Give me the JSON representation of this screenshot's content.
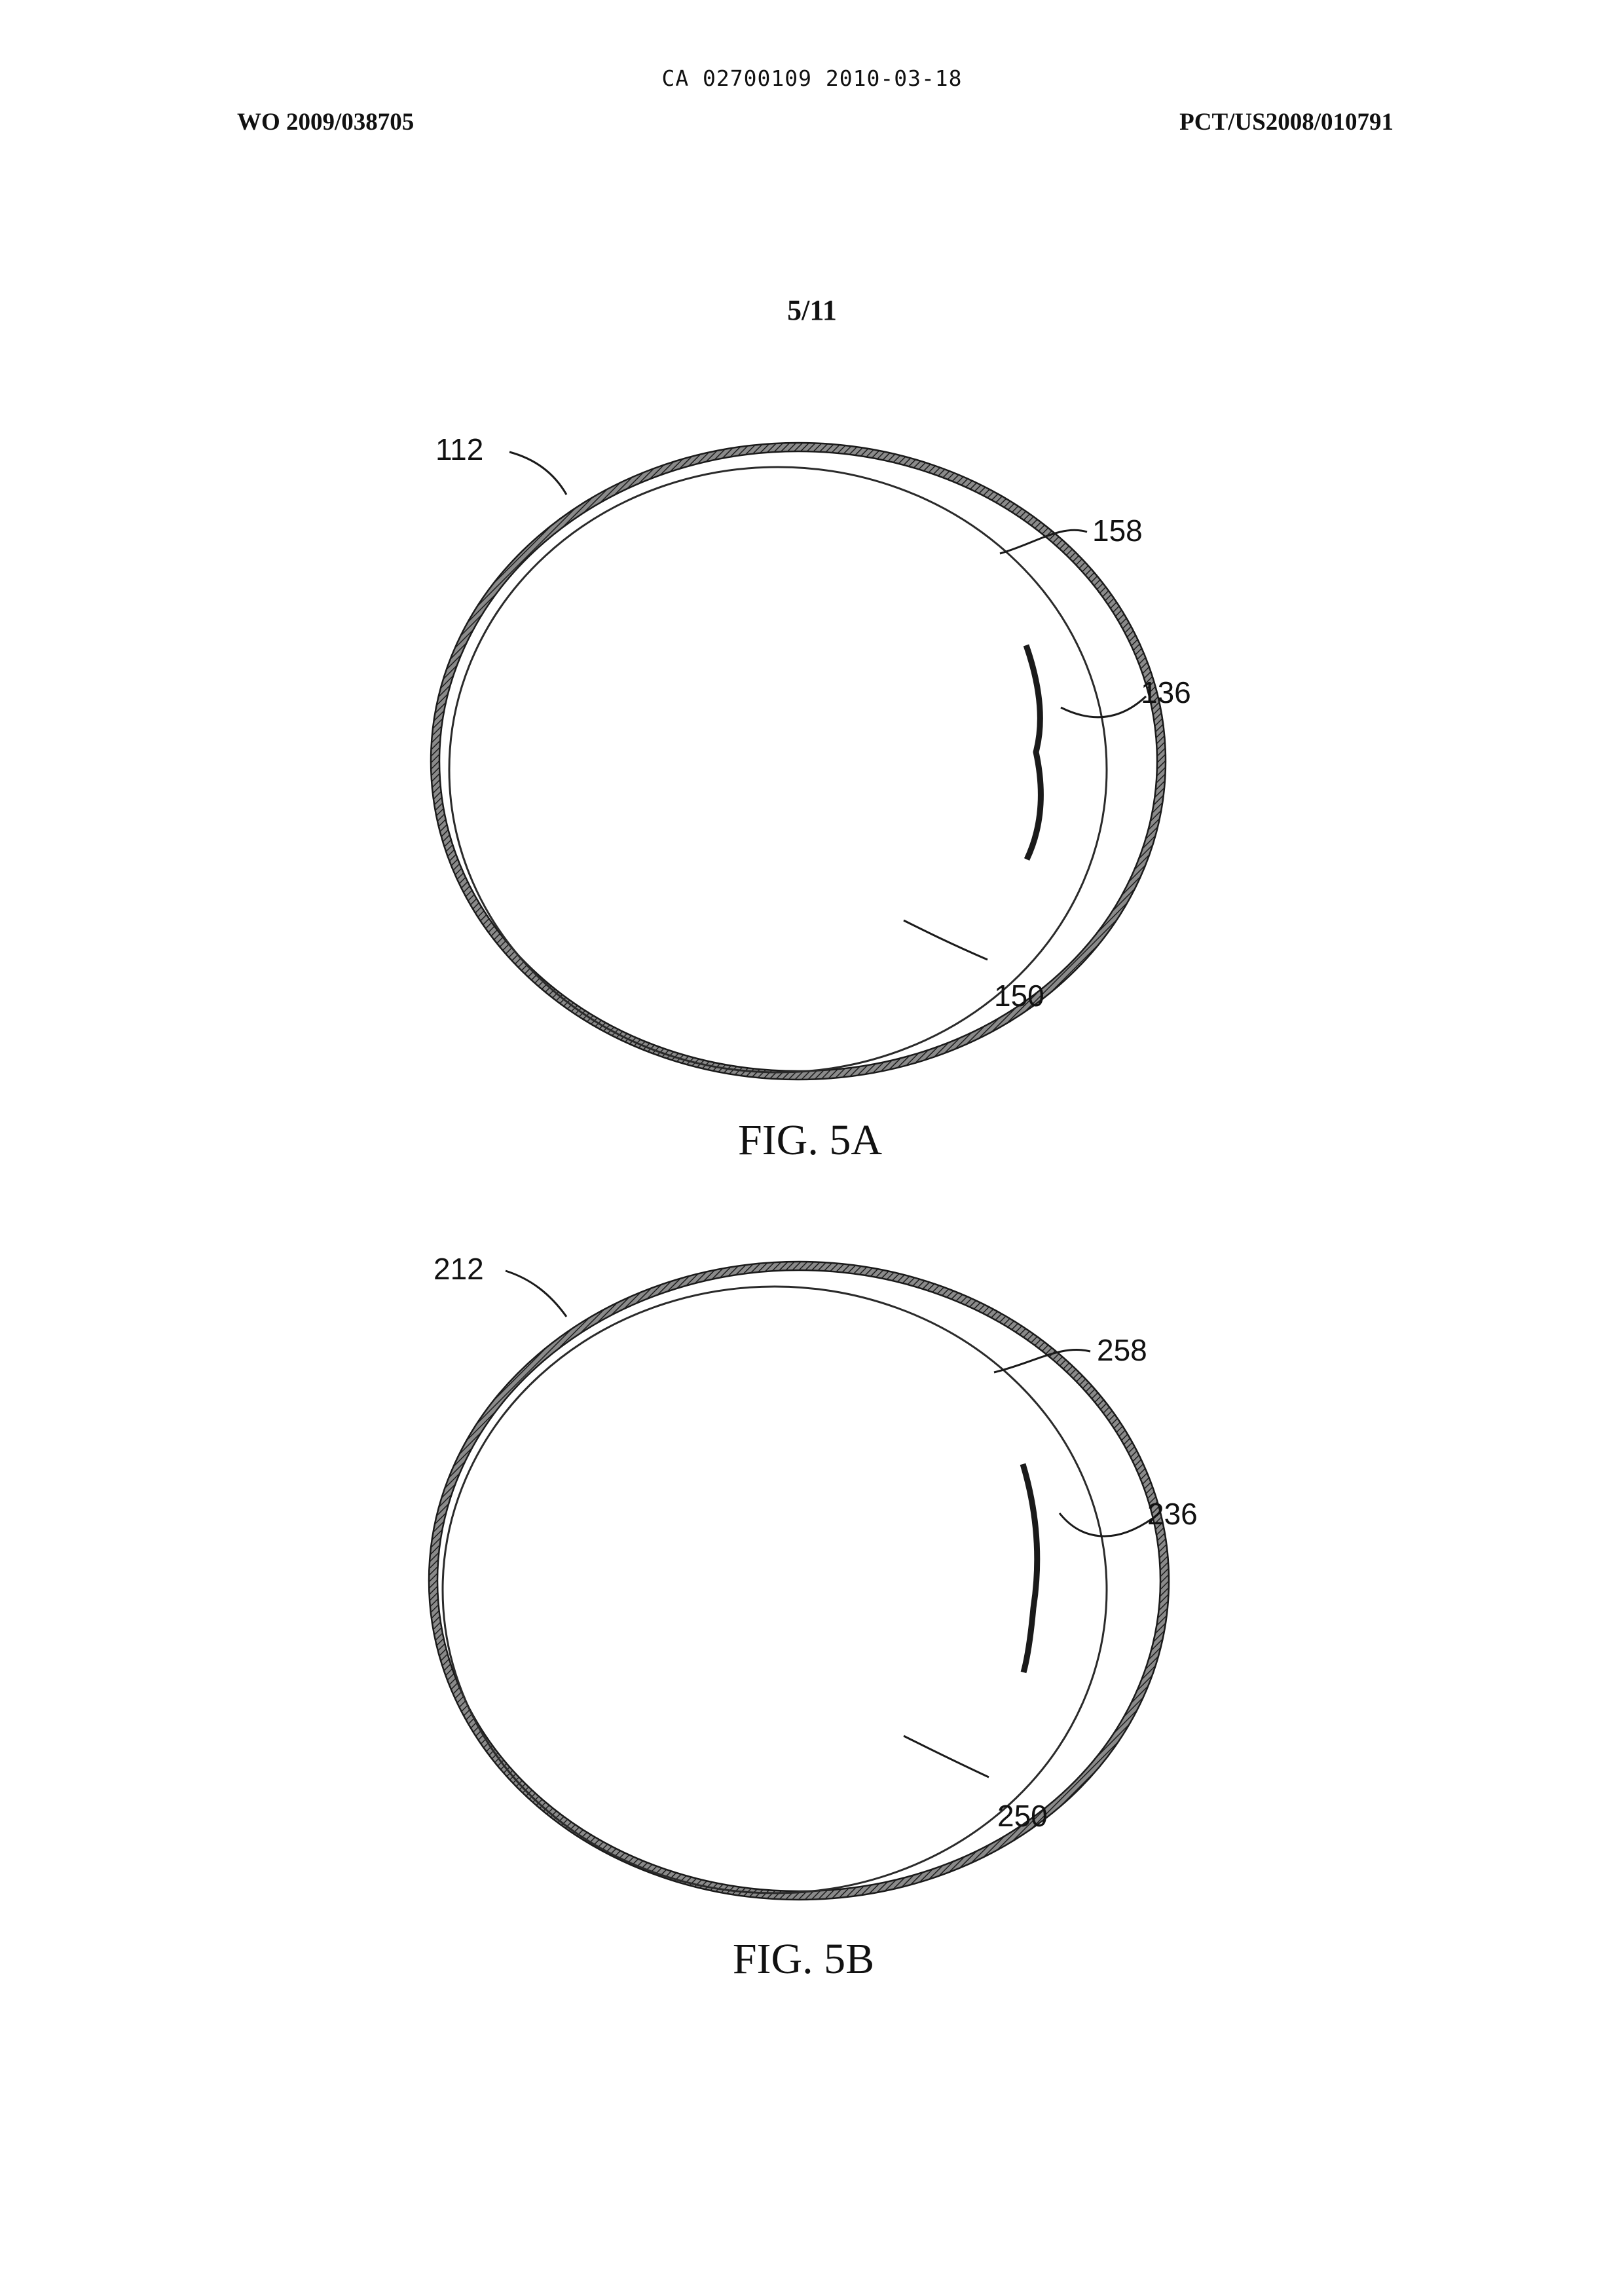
{
  "header": {
    "ca_line": "CA 02700109 2010-03-18",
    "wo_number": "WO 2009/038705",
    "pct_number": "PCT/US2008/010791",
    "sheet_number": "5/11"
  },
  "figures": [
    {
      "caption": "FIG. 5A",
      "refs": {
        "outer": "112",
        "gap": "158",
        "element": "136",
        "inner": "150"
      }
    },
    {
      "caption": "FIG. 5B",
      "refs": {
        "outer": "212",
        "gap": "258",
        "element": "236",
        "inner": "250"
      }
    }
  ]
}
